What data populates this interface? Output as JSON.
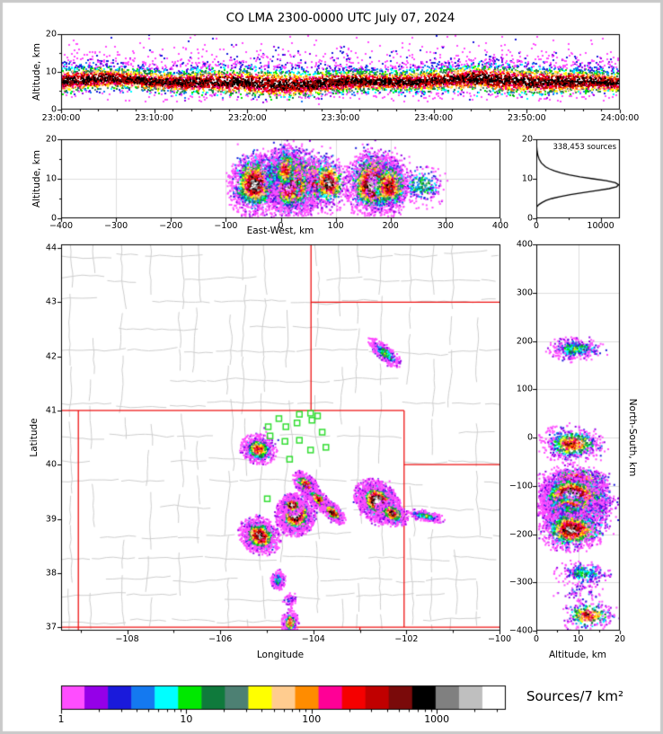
{
  "title": "CO LMA 2300-0000 UTC July 07, 2024",
  "colors": {
    "frame": "#c9c9c9",
    "state_border": "#ee1111",
    "county_line": "#cdcdcd",
    "station": "#33dd33",
    "grid": "#dedede",
    "histogram_line": "#000000"
  },
  "axes": {
    "time": {
      "ylabel": "Altitude, km",
      "yticks": [
        "0",
        "10",
        "20"
      ],
      "xticks": [
        "23:00:00",
        "23:10:00",
        "23:20:00",
        "23:30:00",
        "23:40:00",
        "23:50:00",
        "24:00:00"
      ]
    },
    "ew": {
      "ylabel": "Altitude, km",
      "xlabel": "East-West, km",
      "yticks": [
        "0",
        "10",
        "20"
      ],
      "xticks": [
        "−400",
        "−300",
        "−200",
        "−100",
        "0",
        "100",
        "200",
        "300",
        "400"
      ]
    },
    "hist": {
      "annotation": "338,453 sources",
      "xticks": [
        "0",
        "10000"
      ],
      "yticks": [
        "0",
        "10",
        "20"
      ]
    },
    "map": {
      "ylabel": "Latitude",
      "xlabel": "Longitude",
      "yticks": [
        "37",
        "38",
        "39",
        "40",
        "41",
        "42",
        "43",
        "44"
      ],
      "xticks": [
        "−108",
        "−106",
        "−104",
        "−102",
        "−100"
      ]
    },
    "ns": {
      "ylabel": "North-South, km",
      "xlabel": "Altitude, km",
      "yticks": [
        "400",
        "300",
        "200",
        "100",
        "0",
        "−100",
        "−200",
        "−300",
        "−400"
      ],
      "xticks": [
        "0",
        "10",
        "20"
      ]
    }
  },
  "colorbar": {
    "label": "Sources/7 km²",
    "tick_labels": [
      "1",
      "10",
      "100",
      "1000"
    ],
    "tick_values": [
      1,
      10,
      100,
      1000
    ],
    "max_value": 3500,
    "palette": [
      "#ff4dff",
      "#9500e8",
      "#1a1adb",
      "#1479f0",
      "#00ffff",
      "#00e800",
      "#0f7a3c",
      "#4d8073",
      "#ffff00",
      "#ffcc8f",
      "#ff8c00",
      "#ff0096",
      "#f50000",
      "#c00000",
      "#7a0a0a",
      "#000000",
      "#808080",
      "#bfbfbf",
      "#ffffff"
    ]
  },
  "chart_data": [
    {
      "id": "time_height",
      "type": "heatmap",
      "xlabel_ticks_utc": [
        "23:00:00",
        "23:10:00",
        "23:20:00",
        "23:30:00",
        "23:40:00",
        "23:50:00",
        "24:00:00"
      ],
      "alt_range_km": [
        0,
        20
      ],
      "band_alt_mean_km": 7.4,
      "band_alt_sigma_km": 2.0,
      "description": "continuous source density band all hour; red/black core 5.5-9.5 km, yellow-green-blue fringes, sparse magenta to 20 km"
    },
    {
      "id": "ew_projection",
      "type": "heatmap",
      "xlim_km": [
        -400,
        400
      ],
      "ylim_km": [
        0,
        20
      ],
      "cells_ref": "plan_map.cells"
    },
    {
      "id": "altitude_histogram",
      "type": "line",
      "total_sources": "338,453",
      "xlim": [
        0,
        13000
      ],
      "xticks": [
        0,
        10000
      ],
      "alt_km": [
        20,
        19,
        18,
        17,
        16,
        15,
        14,
        13,
        12.5,
        12,
        11.5,
        11,
        10.5,
        10,
        9.5,
        9,
        8.5,
        8,
        7.5,
        7,
        6.5,
        6,
        5.5,
        5,
        4.5,
        4,
        3.5,
        3,
        2.8,
        1.5,
        0
      ],
      "counts": [
        10,
        30,
        60,
        120,
        230,
        430,
        780,
        1450,
        2050,
        2800,
        3800,
        5100,
        6800,
        8800,
        10900,
        12300,
        12800,
        12500,
        11300,
        9400,
        7300,
        5300,
        3700,
        2400,
        1500,
        900,
        420,
        120,
        0,
        0,
        0
      ]
    },
    {
      "id": "plan_map",
      "type": "heatmap-map",
      "lon_range": [
        -109.43,
        -100.0
      ],
      "lat_range": [
        36.93,
        44.07
      ],
      "projection_center": {
        "lon": -104.6,
        "lat": 40.4
      },
      "state_borders": [
        [
          -109.43,
          41,
          -102.05,
          41
        ],
        [
          -109.05,
          41,
          -109.05,
          36.9
        ],
        [
          -109.43,
          37,
          -100.0,
          37
        ],
        [
          -102.05,
          41,
          -102.05,
          37
        ],
        [
          -104.05,
          44.07,
          -104.05,
          41
        ],
        [
          -104.05,
          43,
          -100.0,
          43
        ],
        [
          -102.05,
          40,
          -100.0,
          40
        ],
        [
          -103.0,
          37,
          -103.0,
          36.9
        ]
      ],
      "stations": [
        [
          -104.74,
          40.85
        ],
        [
          -104.59,
          40.7
        ],
        [
          -104.35,
          40.77
        ],
        [
          -104.3,
          40.93
        ],
        [
          -104.06,
          40.95
        ],
        [
          -104.03,
          40.82
        ],
        [
          -103.91,
          40.9
        ],
        [
          -103.81,
          40.6
        ],
        [
          -103.73,
          40.32
        ],
        [
          -104.06,
          40.27
        ],
        [
          -104.3,
          40.45
        ],
        [
          -104.61,
          40.43
        ],
        [
          -104.51,
          40.1
        ],
        [
          -104.97,
          40.7
        ],
        [
          -104.93,
          40.53
        ],
        [
          -104.99,
          39.37
        ]
      ],
      "cells": [
        {
          "lon": -102.45,
          "lat": 42.05,
          "alt": 9.0,
          "s_lon": 0.14,
          "s_lat": 0.05,
          "s_alt": 2.2,
          "rot": -35,
          "core": 0.34,
          "n": 380
        },
        {
          "lon": -105.18,
          "lat": 40.28,
          "alt": 8.0,
          "s_lon": 0.13,
          "s_lat": 0.09,
          "s_alt": 2.6,
          "rot": -10,
          "core": 0.68,
          "n": 650
        },
        {
          "lon": -104.15,
          "lat": 39.62,
          "alt": 9.0,
          "s_lon": 0.11,
          "s_lat": 0.06,
          "s_alt": 2.8,
          "rot": -40,
          "core": 0.8,
          "n": 600
        },
        {
          "lon": -103.88,
          "lat": 39.35,
          "alt": 8.5,
          "s_lon": 0.12,
          "s_lat": 0.05,
          "s_alt": 2.6,
          "rot": -40,
          "core": 0.75,
          "n": 500
        },
        {
          "lon": -103.58,
          "lat": 39.12,
          "alt": 8.5,
          "s_lon": 0.1,
          "s_lat": 0.05,
          "s_alt": 2.4,
          "rot": -35,
          "core": 0.88,
          "n": 450
        },
        {
          "lon": -104.38,
          "lat": 39.08,
          "alt": 8.0,
          "s_lon": 0.14,
          "s_lat": 0.13,
          "s_alt": 3.2,
          "rot": 15,
          "core": 1.0,
          "n": 1600
        },
        {
          "lon": -104.45,
          "lat": 39.25,
          "alt": 8.0,
          "s_lon": 0.08,
          "s_lat": 0.06,
          "s_alt": 2.8,
          "rot": 0,
          "core": 0.95,
          "n": 450
        },
        {
          "lon": -102.62,
          "lat": 39.32,
          "alt": 8.0,
          "s_lon": 0.17,
          "s_lat": 0.12,
          "s_alt": 3.0,
          "rot": -30,
          "core": 1.0,
          "n": 2000
        },
        {
          "lon": -102.3,
          "lat": 39.1,
          "alt": 7.5,
          "s_lon": 0.12,
          "s_lat": 0.07,
          "s_alt": 2.4,
          "rot": -20,
          "core": 0.78,
          "n": 550
        },
        {
          "lon": -101.6,
          "lat": 39.05,
          "alt": 8.0,
          "s_lon": 0.14,
          "s_lat": 0.035,
          "s_alt": 1.8,
          "rot": -10,
          "core": 0.33,
          "n": 220
        },
        {
          "lon": -105.15,
          "lat": 38.68,
          "alt": 8.0,
          "s_lon": 0.15,
          "s_lat": 0.11,
          "s_alt": 2.8,
          "rot": -20,
          "core": 0.9,
          "n": 1100
        },
        {
          "lon": -104.76,
          "lat": 37.86,
          "alt": 11.0,
          "s_lon": 0.05,
          "s_lat": 0.06,
          "s_alt": 2.2,
          "rot": 0,
          "core": 0.3,
          "n": 260
        },
        {
          "lon": -104.5,
          "lat": 37.5,
          "alt": 10.0,
          "s_lon": 0.05,
          "s_lat": 0.05,
          "s_alt": 2.0,
          "rot": 0,
          "core": 0.08,
          "n": 60
        },
        {
          "lon": -104.5,
          "lat": 37.08,
          "alt": 12.0,
          "s_lon": 0.06,
          "s_lat": 0.08,
          "s_alt": 2.2,
          "rot": 0,
          "core": 0.7,
          "n": 300
        }
      ]
    },
    {
      "id": "ns_projection",
      "type": "heatmap",
      "xlim_km": [
        0,
        20
      ],
      "ylim_km": [
        -400,
        400
      ],
      "cells_ref": "plan_map.cells"
    }
  ]
}
